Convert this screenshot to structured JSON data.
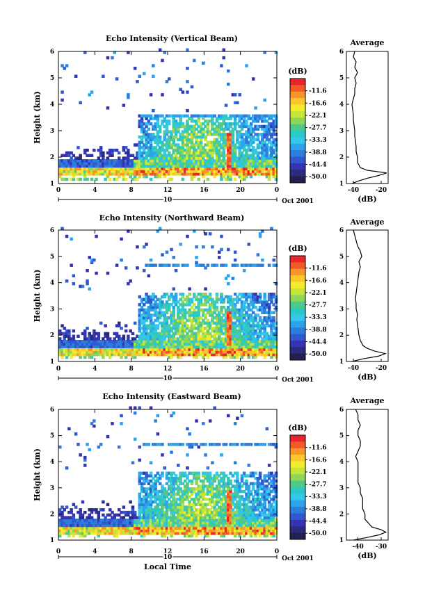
{
  "figure": {
    "time_axis_label": "Local Time",
    "date_label": "Oct 2001",
    "date_day": "10",
    "colorbar_unit": "(dB)",
    "colorbar_ticks": [
      "-11.6",
      "-16.6",
      "-22.1",
      "-27.7",
      "-33.3",
      "-38.8",
      "-44.4",
      "-50.0"
    ],
    "colorbar_colors": [
      "#e8242c",
      "#f15a26",
      "#f8962a",
      "#fcc72c",
      "#f2ec2e",
      "#c6e53a",
      "#8fd657",
      "#4fc98a",
      "#2bc9c5",
      "#35c7eb",
      "#2da4ea",
      "#2e7ddd",
      "#3059cf",
      "#3434b0",
      "#2c2a7c",
      "#22204e"
    ]
  },
  "chart_data": [
    {
      "type": "heatmap",
      "title": "Echo Intensity (Vertical Beam)",
      "ylabel": "Height (km)",
      "xlabel": "",
      "x_ticks": [
        "0",
        "4",
        "8",
        "12",
        "16",
        "20",
        "0"
      ],
      "y_ticks": [
        "1",
        "2",
        "3",
        "4",
        "5",
        "6"
      ],
      "xlim": [
        0,
        24
      ],
      "ylim": [
        1,
        6
      ],
      "units": "dB",
      "description_values": {
        "strong_layer_height_km": 1.4,
        "echo_top_height_km": 3.5,
        "convective_core_time_h": 18.6
      },
      "average_profile": {
        "title": "Average",
        "xlabel": "(dB)",
        "x_ticks": [
          "-40",
          "-20"
        ],
        "xlim": [
          -45,
          -15
        ],
        "y_ticks": [
          "1",
          "2",
          "3",
          "4",
          "5",
          "6"
        ],
        "ylim": [
          1,
          6
        ],
        "heights": [
          1.0,
          1.1,
          1.2,
          1.3,
          1.4,
          1.5,
          1.6,
          1.7,
          1.8,
          2.0,
          2.2,
          2.4,
          2.6,
          2.8,
          3.0,
          3.2,
          3.4,
          3.6,
          3.8,
          4.0,
          4.2,
          4.4,
          4.6,
          4.8,
          5.0,
          5.2,
          5.4,
          5.6,
          5.8,
          6.0
        ],
        "values": [
          -41,
          -36,
          -30,
          -22,
          -16,
          -30,
          -35,
          -36,
          -37,
          -37,
          -38,
          -38,
          -38.5,
          -39,
          -39,
          -39.5,
          -40,
          -40,
          -40.5,
          -41,
          -40,
          -39,
          -39,
          -38,
          -39,
          -37,
          -39,
          -38,
          -40,
          -39
        ]
      }
    },
    {
      "type": "heatmap",
      "title": "Echo Intensity (Northward Beam)",
      "ylabel": "Height (km)",
      "xlabel": "",
      "x_ticks": [
        "0",
        "4",
        "8",
        "12",
        "16",
        "20",
        "0"
      ],
      "y_ticks": [
        "1",
        "2",
        "3",
        "4",
        "5",
        "6"
      ],
      "xlim": [
        0,
        24
      ],
      "ylim": [
        1,
        6
      ],
      "units": "dB",
      "description_values": {
        "strong_layer_height_km": 1.3,
        "echo_top_height_km": 4.6,
        "convective_core_time_h": 18.6
      },
      "average_profile": {
        "title": "Average",
        "xlabel": "(dB)",
        "x_ticks": [
          "-40",
          "-20"
        ],
        "xlim": [
          -45,
          -15
        ],
        "y_ticks": [
          "1",
          "2",
          "3",
          "4",
          "5",
          "6"
        ],
        "ylim": [
          1,
          6
        ],
        "heights": [
          1.0,
          1.1,
          1.2,
          1.3,
          1.4,
          1.5,
          1.6,
          1.7,
          1.8,
          2.0,
          2.2,
          2.4,
          2.6,
          2.8,
          3.0,
          3.2,
          3.4,
          3.6,
          3.8,
          4.0,
          4.2,
          4.4,
          4.6,
          4.8,
          5.0,
          5.2,
          5.4,
          5.6,
          5.8,
          6.0
        ],
        "values": [
          -41,
          -33,
          -22,
          -17,
          -25,
          -30,
          -33,
          -34,
          -35,
          -36,
          -36.5,
          -37,
          -37.5,
          -37,
          -38,
          -38,
          -38.5,
          -38,
          -37.5,
          -37,
          -36.5,
          -36,
          -35,
          -36,
          -34,
          -35,
          -37,
          -38,
          -39,
          -40
        ]
      }
    },
    {
      "type": "heatmap",
      "title": "Echo Intensity (Eastward Beam)",
      "ylabel": "Height (km)",
      "xlabel": "Local Time",
      "x_ticks": [
        "0",
        "4",
        "8",
        "12",
        "16",
        "20",
        "0"
      ],
      "y_ticks": [
        "1",
        "2",
        "3",
        "4",
        "5",
        "6"
      ],
      "xlim": [
        0,
        24
      ],
      "ylim": [
        1,
        6
      ],
      "units": "dB",
      "description_values": {
        "strong_layer_height_km": 1.3,
        "echo_top_height_km": 4.6,
        "convective_core_time_h": 18.6
      },
      "average_profile": {
        "title": "Average",
        "xlabel": "(dB)",
        "x_ticks": [
          "-40",
          "-30"
        ],
        "xlim": [
          -45,
          -27
        ],
        "y_ticks": [
          "1",
          "2",
          "3",
          "4",
          "5",
          "6"
        ],
        "ylim": [
          1,
          6
        ],
        "heights": [
          1.0,
          1.1,
          1.2,
          1.3,
          1.4,
          1.5,
          1.6,
          1.7,
          1.8,
          2.0,
          2.2,
          2.4,
          2.6,
          2.8,
          3.0,
          3.2,
          3.4,
          3.6,
          3.8,
          4.0,
          4.2,
          4.4,
          4.6,
          4.8,
          5.0,
          5.2,
          5.4,
          5.6,
          5.8,
          6.0
        ],
        "values": [
          -42,
          -36,
          -31,
          -28,
          -30,
          -34,
          -35,
          -36,
          -37,
          -37,
          -38,
          -38,
          -38,
          -39,
          -39,
          -40,
          -40,
          -40,
          -40,
          -40,
          -41,
          -40,
          -39,
          -39,
          -40,
          -40,
          -39,
          -40,
          -40,
          -41
        ]
      }
    }
  ]
}
